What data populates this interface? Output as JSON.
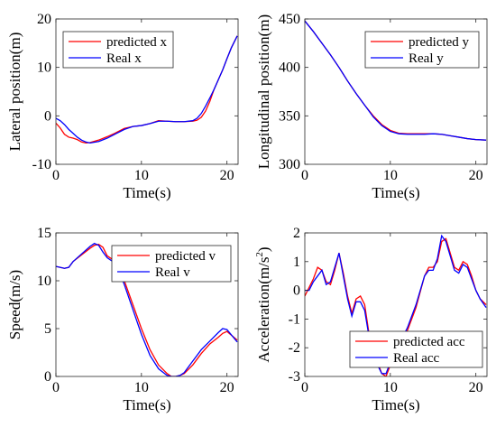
{
  "chart_data": [
    {
      "type": "line",
      "xlabel": "Time(s)",
      "ylabel": "Lateral position(m)",
      "xlim": [
        0,
        21.3
      ],
      "ylim": [
        -10,
        20
      ],
      "xticks": [
        0,
        10,
        20
      ],
      "yticks": [
        -10,
        0,
        10,
        20
      ],
      "xtick_labels": [
        "0",
        "10",
        "20"
      ],
      "ytick_labels": [
        "-10",
        "0",
        "10",
        "20"
      ],
      "grid": false,
      "legend_position": "top-left",
      "series": [
        {
          "name": "predicted x",
          "color": "#ff0000",
          "x": [
            0,
            0.5,
            1,
            1.5,
            2,
            2.5,
            3,
            3.5,
            4,
            5,
            6,
            7,
            8,
            9,
            10,
            11,
            12,
            13,
            14,
            15,
            16,
            16.5,
            17,
            17.5,
            18,
            18.5,
            19,
            19.5,
            20,
            20.5,
            21.2
          ],
          "y": [
            -1.5,
            -2.5,
            -3.8,
            -4.4,
            -4.6,
            -4.9,
            -5.4,
            -5.6,
            -5.5,
            -5.0,
            -4.3,
            -3.5,
            -2.6,
            -2.2,
            -2.0,
            -1.6,
            -1.0,
            -1.1,
            -1.2,
            -1.2,
            -1.1,
            -0.9,
            -0.3,
            1.0,
            3.0,
            5.5,
            7.5,
            9.5,
            11.8,
            14.0,
            16.5
          ]
        },
        {
          "name": "Real x",
          "color": "#0000ff",
          "x": [
            0,
            0.5,
            1,
            1.5,
            2,
            2.5,
            3,
            3.5,
            4,
            5,
            6,
            7,
            8,
            9,
            10,
            11,
            12,
            13,
            14,
            15,
            16,
            16.5,
            17,
            17.5,
            18,
            18.5,
            19,
            19.5,
            20,
            20.5,
            21.2
          ],
          "y": [
            -0.5,
            -1.0,
            -1.8,
            -2.8,
            -3.6,
            -4.4,
            -5.0,
            -5.4,
            -5.6,
            -5.3,
            -4.6,
            -3.7,
            -2.8,
            -2.2,
            -2.0,
            -1.6,
            -1.1,
            -1.1,
            -1.2,
            -1.2,
            -1.0,
            -0.5,
            0.5,
            2.0,
            3.7,
            5.5,
            7.5,
            9.5,
            11.8,
            14.0,
            16.5
          ]
        }
      ]
    },
    {
      "type": "line",
      "xlabel": "Time(s)",
      "ylabel": "Longitudinal position(m)",
      "xlim": [
        0,
        21.3
      ],
      "ylim": [
        300,
        450
      ],
      "xticks": [
        0,
        10,
        20
      ],
      "yticks": [
        300,
        350,
        400,
        450
      ],
      "xtick_labels": [
        "0",
        "10",
        "20"
      ],
      "ytick_labels": [
        "300",
        "350",
        "400",
        "450"
      ],
      "grid": false,
      "legend_position": "top-right",
      "series": [
        {
          "name": "predicted y",
          "color": "#ff0000",
          "x": [
            0,
            1,
            2,
            3,
            4,
            5,
            6,
            7,
            8,
            9,
            10,
            11,
            12,
            13,
            14,
            15,
            16,
            17,
            18,
            19,
            20,
            21.2
          ],
          "y": [
            448,
            437,
            425,
            413,
            400,
            386,
            373,
            361,
            350,
            341,
            335,
            332,
            331.5,
            331.5,
            331.5,
            331.5,
            331,
            329.5,
            328,
            326.5,
            325.5,
            325
          ]
        },
        {
          "name": "Real y",
          "color": "#0000ff",
          "x": [
            0,
            1,
            2,
            3,
            4,
            5,
            6,
            7,
            8,
            9,
            10,
            11,
            12,
            13,
            14,
            15,
            16,
            17,
            18,
            19,
            20,
            21.2
          ],
          "y": [
            448,
            437,
            425,
            413,
            400,
            386,
            373,
            361,
            349,
            340,
            334,
            331.5,
            331,
            331,
            331,
            331.5,
            331,
            329.5,
            328,
            326.5,
            325.5,
            325
          ]
        }
      ]
    },
    {
      "type": "line",
      "xlabel": "Time(s)",
      "ylabel": "Speed(m/s)",
      "xlim": [
        0,
        21.3
      ],
      "ylim": [
        0,
        15
      ],
      "xticks": [
        0,
        10,
        20
      ],
      "yticks": [
        0,
        5,
        10,
        15
      ],
      "xtick_labels": [
        "0",
        "10",
        "20"
      ],
      "ytick_labels": [
        "0",
        "5",
        "10",
        "15"
      ],
      "grid": false,
      "legend_position": "top-right",
      "series": [
        {
          "name": "predicted v",
          "color": "#ff0000",
          "x": [
            0,
            1,
            1.5,
            2,
            3,
            4,
            4.5,
            5,
            5.5,
            6,
            7,
            8,
            9,
            10,
            11,
            12,
            13,
            13.5,
            14,
            14.5,
            15,
            16,
            17,
            18,
            19,
            19.5,
            20,
            21.2
          ],
          "y": [
            11.5,
            11.3,
            11.4,
            12.0,
            12.7,
            13.4,
            13.7,
            13.8,
            13.5,
            12.6,
            12.0,
            10.0,
            7.5,
            5.0,
            2.8,
            1.2,
            0.3,
            0.0,
            0.0,
            0.1,
            0.3,
            1.2,
            2.4,
            3.4,
            4.1,
            4.5,
            4.7,
            3.8
          ]
        },
        {
          "name": "Real v",
          "color": "#0000ff",
          "x": [
            0,
            1,
            1.5,
            2,
            3,
            4,
            4.5,
            5,
            5.5,
            6,
            7,
            8,
            9,
            10,
            11,
            12,
            13,
            13.5,
            14,
            14.5,
            15,
            16,
            17,
            18,
            19,
            19.5,
            20,
            21.2
          ],
          "y": [
            11.5,
            11.3,
            11.4,
            12.0,
            12.8,
            13.6,
            13.9,
            13.7,
            13.0,
            12.4,
            11.8,
            9.6,
            7.0,
            4.4,
            2.2,
            0.8,
            0.1,
            0.0,
            0.0,
            0.1,
            0.4,
            1.6,
            2.8,
            3.7,
            4.6,
            5.0,
            4.9,
            3.6
          ]
        }
      ]
    },
    {
      "type": "line",
      "xlabel": "Time(s)",
      "ylabel": "Acceleration(m/s",
      "ylabel_superscript": "2",
      "ylabel_suffix": ")",
      "xlim": [
        0,
        21.3
      ],
      "ylim": [
        -3,
        2
      ],
      "xticks": [
        0,
        10,
        20
      ],
      "yticks": [
        -3,
        -2,
        -1,
        0,
        1,
        2
      ],
      "xtick_labels": [
        "0",
        "10",
        "20"
      ],
      "ytick_labels": [
        "-3",
        "-2",
        "-1",
        "0",
        "1",
        "2"
      ],
      "grid": false,
      "legend_position": "bottom-right",
      "series": [
        {
          "name": "predicted acc",
          "color": "#ff0000",
          "x": [
            0,
            0.5,
            1,
            1.5,
            2,
            2.5,
            3,
            3.5,
            4,
            4.5,
            5,
            5.5,
            6,
            6.5,
            7,
            7.5,
            8,
            8.5,
            9,
            9.5,
            10,
            11,
            12,
            13,
            14,
            14.5,
            15,
            15.5,
            16,
            16.5,
            17,
            17.5,
            18,
            18.5,
            19,
            19.5,
            20,
            20.5,
            21.2
          ],
          "y": [
            -0.2,
            0.1,
            0.4,
            0.8,
            0.7,
            0.3,
            0.2,
            0.7,
            1.3,
            0.6,
            -0.2,
            -0.8,
            -0.3,
            -0.2,
            -0.5,
            -1.5,
            -2.1,
            -2.5,
            -2.9,
            -3.0,
            -2.6,
            -2.0,
            -1.4,
            -0.6,
            0.5,
            0.8,
            0.8,
            1.0,
            1.7,
            1.8,
            1.3,
            0.8,
            0.7,
            1.0,
            0.9,
            0.5,
            0.0,
            -0.3,
            -0.5
          ]
        },
        {
          "name": "Real acc",
          "color": "#0000ff",
          "x": [
            0,
            0.5,
            1,
            1.5,
            2,
            2.5,
            3,
            3.5,
            4,
            4.5,
            5,
            5.5,
            6,
            6.5,
            7,
            7.5,
            8,
            8.5,
            9,
            9.5,
            10,
            11,
            12,
            13,
            14,
            14.5,
            15,
            15.5,
            16,
            16.5,
            17,
            17.5,
            18,
            18.5,
            19,
            19.5,
            20,
            20.5,
            21.2
          ],
          "y": [
            0.0,
            0.0,
            0.3,
            0.5,
            0.7,
            0.2,
            0.3,
            0.8,
            1.3,
            0.5,
            -0.3,
            -0.9,
            -0.4,
            -0.4,
            -0.7,
            -1.6,
            -2.2,
            -2.6,
            -2.9,
            -2.9,
            -2.5,
            -1.9,
            -1.3,
            -0.5,
            0.5,
            0.7,
            0.7,
            1.1,
            1.9,
            1.7,
            1.2,
            0.7,
            0.6,
            0.9,
            0.8,
            0.4,
            0.0,
            -0.3,
            -0.6
          ]
        }
      ]
    }
  ]
}
